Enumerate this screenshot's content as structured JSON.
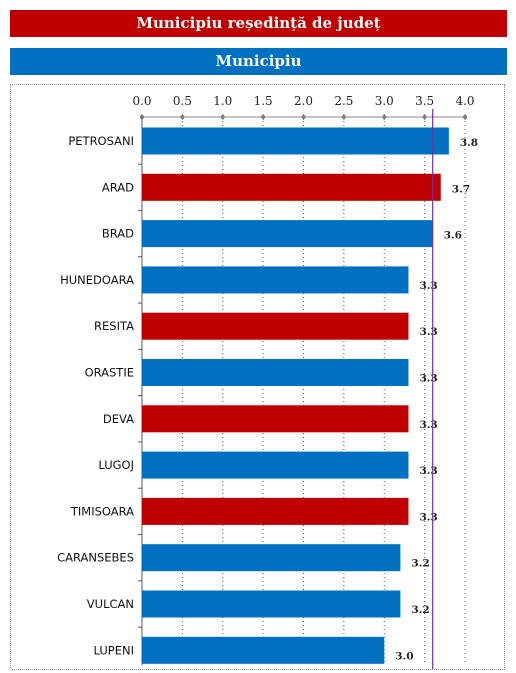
{
  "legend": [
    {
      "label": "Municipiu reședință de județ",
      "color": "#c00000"
    },
    {
      "label": "Municipiu",
      "color": "#0070c0"
    }
  ],
  "chart_data": {
    "type": "bar",
    "orientation": "horizontal",
    "xlim": [
      0,
      4.0
    ],
    "ticks": [
      "0.0",
      "0.5",
      "1.0",
      "1.5",
      "2.0",
      "2.5",
      "3.0",
      "3.5",
      "4.0"
    ],
    "reference_line": 3.6,
    "categories": [
      "PETROSANI",
      "ARAD",
      "BRAD",
      "HUNEDOARA",
      "RESITA",
      "ORASTIE",
      "DEVA",
      "LUGOJ",
      "TIMISOARA",
      "CARANSEBES",
      "VULCAN",
      "LUPENI"
    ],
    "values": [
      3.8,
      3.7,
      3.6,
      3.3,
      3.3,
      3.3,
      3.3,
      3.3,
      3.3,
      3.2,
      3.2,
      3.0
    ],
    "labels": [
      "3.8",
      "3.7",
      "3.6",
      "3.3",
      "3.3",
      "3.3",
      "3.3",
      "3.3",
      "3.3",
      "3.2",
      "3.2",
      "3.0"
    ],
    "county_seat": [
      false,
      true,
      false,
      false,
      true,
      false,
      true,
      false,
      true,
      false,
      false,
      false
    ],
    "grid": true
  }
}
